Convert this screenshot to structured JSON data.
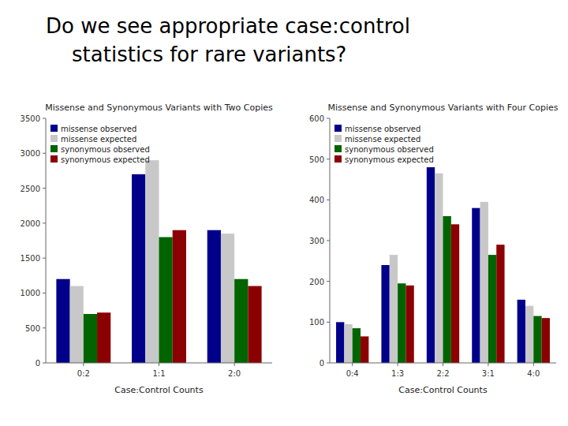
{
  "title": [
    "Do we see appropriate case:control",
    "    statistics for rare variants?"
  ],
  "chart_data": [
    {
      "type": "bar",
      "title": "Missense and Synonymous Variants with Two Copies",
      "x_label": "Case:Control Counts",
      "categories": [
        "0:2",
        "1:1",
        "2:0"
      ],
      "series": [
        {
          "name": "missense observed",
          "color": "#00008B",
          "values": [
            1200,
            2700,
            1900
          ]
        },
        {
          "name": "missense expected",
          "color": "#C8C8C8",
          "values": [
            1100,
            2900,
            1850
          ]
        },
        {
          "name": "synonymous observed",
          "color": "#006400",
          "values": [
            700,
            1800,
            1200
          ]
        },
        {
          "name": "synonymous expected",
          "color": "#8B0000",
          "values": [
            720,
            1900,
            1100
          ]
        }
      ],
      "ylim": [
        0,
        3500
      ],
      "yticks": [
        0,
        500,
        1000,
        1500,
        2000,
        2500,
        3000,
        3500
      ],
      "grid": false,
      "legend": "upper left"
    },
    {
      "type": "bar",
      "title": "Missense and Synonymous Variants with Four Copies",
      "x_label": "Case:Control Counts",
      "categories": [
        "0:4",
        "1:3",
        "2:2",
        "3:1",
        "4:0"
      ],
      "series": [
        {
          "name": "missense observed",
          "color": "#00008B",
          "values": [
            100,
            240,
            480,
            380,
            155
          ]
        },
        {
          "name": "missense expected",
          "color": "#C8C8C8",
          "values": [
            95,
            265,
            465,
            395,
            140
          ]
        },
        {
          "name": "synonymous observed",
          "color": "#006400",
          "values": [
            85,
            195,
            360,
            265,
            115
          ]
        },
        {
          "name": "synonymous expected",
          "color": "#8B0000",
          "values": [
            65,
            190,
            340,
            290,
            110
          ]
        }
      ],
      "ylim": [
        0,
        600
      ],
      "yticks": [
        0,
        100,
        200,
        300,
        400,
        500,
        600
      ],
      "grid": false,
      "legend": "upper left"
    }
  ]
}
